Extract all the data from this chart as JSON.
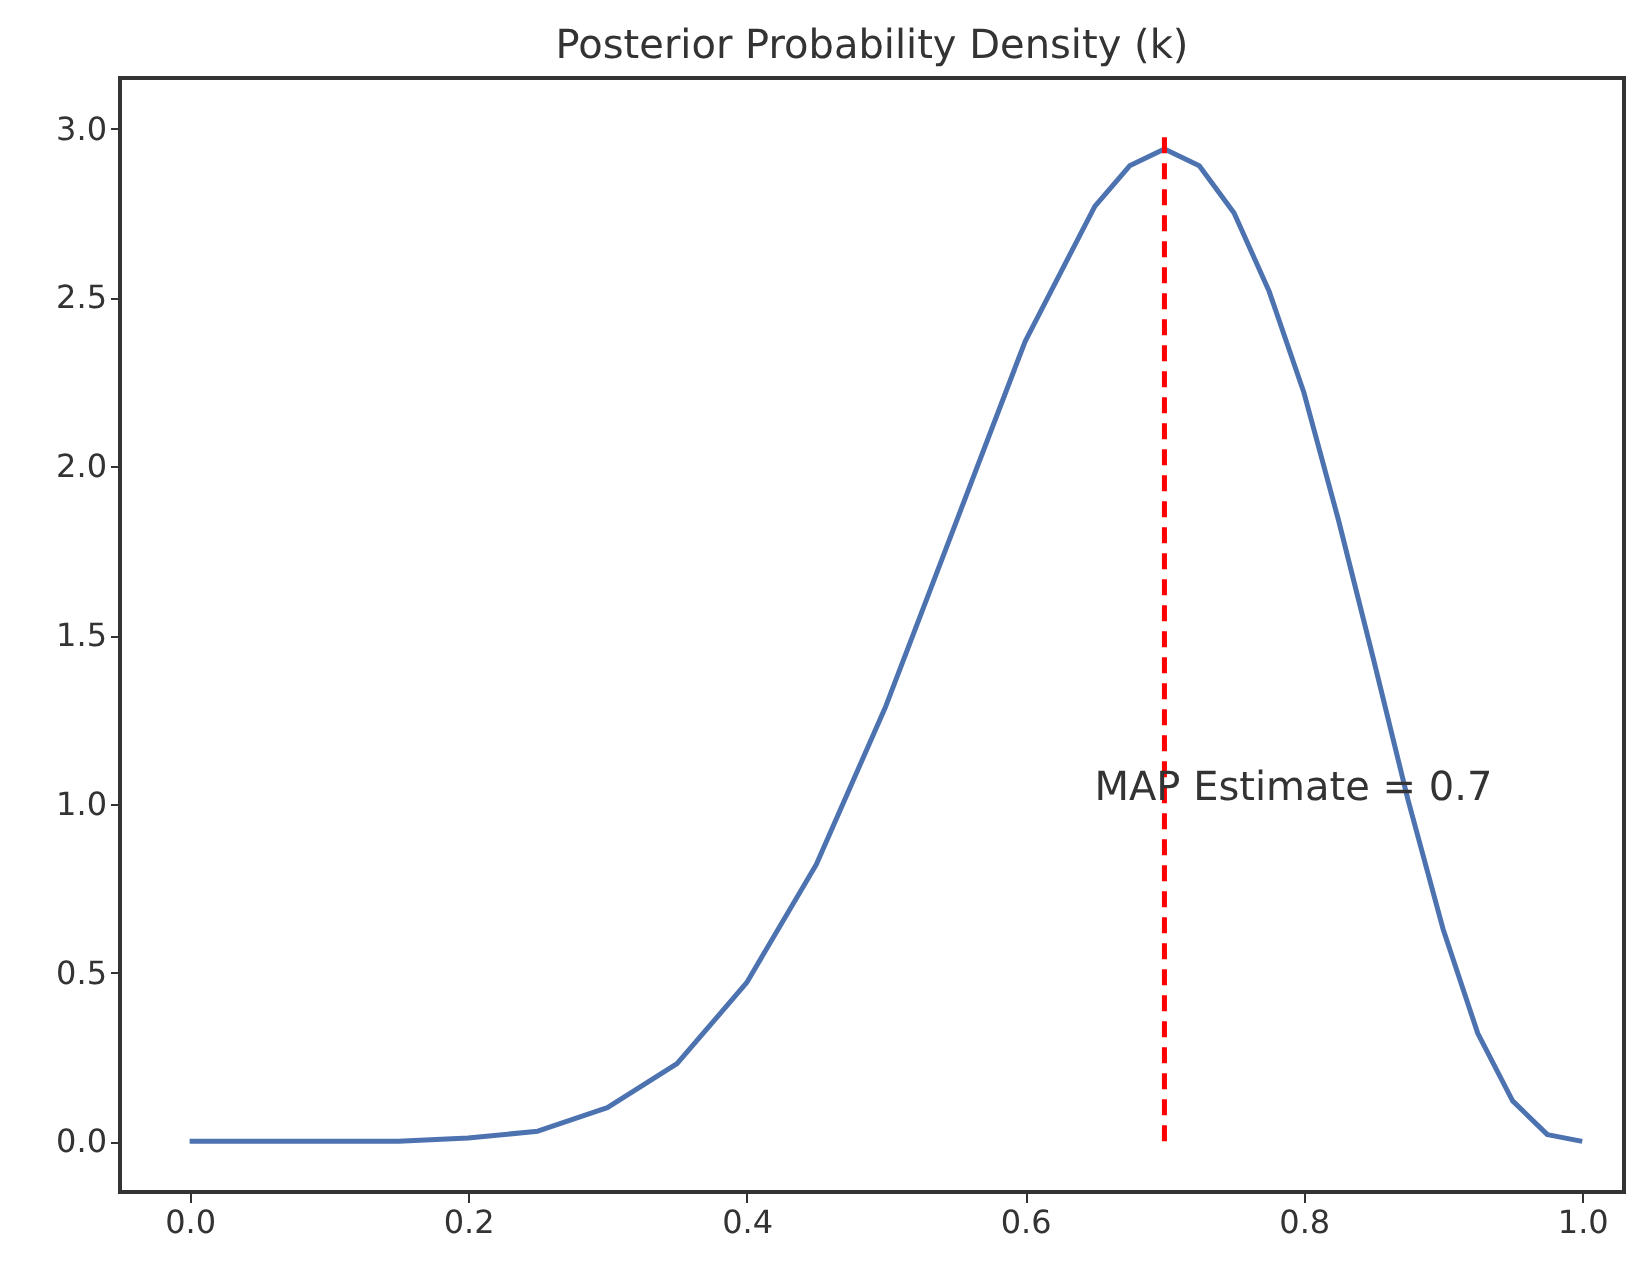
{
  "chart_data": {
    "type": "line",
    "title": "Posterior Probability Density (k)",
    "x": [
      0,
      0.1,
      0.15,
      0.2,
      0.25,
      0.3,
      0.35,
      0.4,
      0.45,
      0.5,
      0.55,
      0.6,
      0.65,
      0.675,
      0.7,
      0.725,
      0.75,
      0.775,
      0.8,
      0.825,
      0.85,
      0.875,
      0.9,
      0.925,
      0.95,
      0.975,
      1.0
    ],
    "series": [
      {
        "color": "#4c72b0",
        "values": [
          0,
          0,
          0,
          0.01,
          0.03,
          0.1,
          0.23,
          0.47,
          0.82,
          1.29,
          1.83,
          2.37,
          2.77,
          2.89,
          2.94,
          2.89,
          2.75,
          2.52,
          2.22,
          1.84,
          1.43,
          1.01,
          0.63,
          0.32,
          0.12,
          0.02,
          0
        ]
      }
    ],
    "xlim": [
      -0.05,
      1.03
    ],
    "ylim": [
      -0.15,
      3.15
    ],
    "xticks": [
      {
        "value": 0,
        "label": "0.0"
      },
      {
        "value": 0.2,
        "label": "0.2"
      },
      {
        "value": 0.4,
        "label": "0.4"
      },
      {
        "value": 0.6,
        "label": "0.6"
      },
      {
        "value": 0.8,
        "label": "0.8"
      },
      {
        "value": 1,
        "label": "1.0"
      }
    ],
    "yticks": [
      {
        "value": 0,
        "label": "0.0"
      },
      {
        "value": 0.5,
        "label": "0.5"
      },
      {
        "value": 1,
        "label": "1.0"
      },
      {
        "value": 1.5,
        "label": "1.5"
      },
      {
        "value": 2,
        "label": "2.0"
      },
      {
        "value": 2.5,
        "label": "2.5"
      },
      {
        "value": 3,
        "label": "3.0"
      }
    ],
    "ref_lines": [
      {
        "axis": "x",
        "value": 0.7,
        "label": "MAP Estimate = 0.7",
        "color": "#ff0000",
        "line_style": "dashed"
      }
    ],
    "grid": false,
    "marker": "none",
    "line_style": "solid"
  }
}
